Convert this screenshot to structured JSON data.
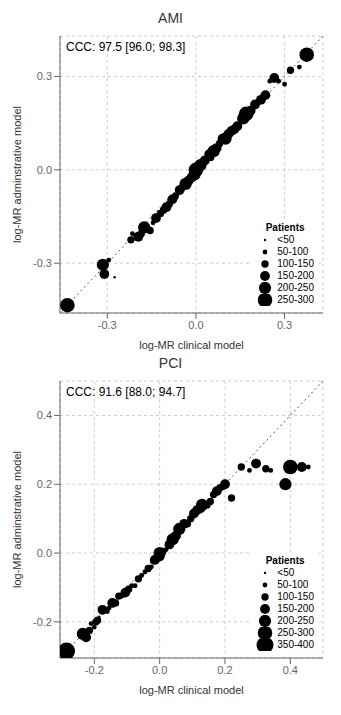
{
  "chart_data": [
    {
      "type": "scatter",
      "title": "AMI",
      "annotation": "CCC: 97.5 [96.0; 98.3]",
      "xlabel": "log-MR clinical model",
      "ylabel": "log-MR adminstrative model",
      "xlim": [
        -0.46,
        0.43
      ],
      "ylim": [
        -0.46,
        0.43
      ],
      "xticks": [
        -0.3,
        {
          "value": 0.0,
          "label": "0.0"
        },
        0.3
      ],
      "yticks": [
        -0.3,
        {
          "value": 0.0,
          "label": "0.0"
        },
        0.3
      ],
      "grid": true,
      "legend": "lower right",
      "legend_title": "Patients",
      "legend_labels": [
        "<50",
        "50-100",
        "100-150",
        "150-200",
        "200-250",
        "250-300"
      ],
      "legend_sizes": [
        3,
        12,
        28,
        50,
        78,
        110
      ],
      "color": "#000000",
      "x": [
        -0.435,
        -0.315,
        -0.31,
        -0.295,
        -0.275,
        -0.22,
        -0.215,
        -0.195,
        -0.185,
        -0.175,
        -0.155,
        -0.145,
        -0.135,
        -0.12,
        -0.11,
        -0.1,
        -0.09,
        -0.08,
        -0.07,
        -0.06,
        -0.055,
        -0.045,
        -0.035,
        -0.025,
        -0.015,
        -0.005,
        0.0,
        0.005,
        0.015,
        0.02,
        0.03,
        0.045,
        0.05,
        0.06,
        0.07,
        0.08,
        0.09,
        0.1,
        0.11,
        0.12,
        0.13,
        0.14,
        0.155,
        0.16,
        0.17,
        0.185,
        0.2,
        0.22,
        0.235,
        0.25,
        0.265,
        0.28,
        0.3,
        0.32,
        0.35,
        0.375
      ],
      "values": [
        -0.435,
        -0.305,
        -0.335,
        -0.29,
        -0.345,
        -0.225,
        -0.205,
        -0.215,
        -0.205,
        -0.185,
        -0.195,
        -0.17,
        -0.155,
        -0.14,
        -0.13,
        -0.12,
        -0.11,
        -0.095,
        -0.085,
        -0.075,
        -0.065,
        -0.055,
        -0.045,
        -0.035,
        -0.025,
        -0.015,
        0.0,
        0.005,
        0.015,
        0.025,
        0.03,
        0.05,
        0.04,
        0.06,
        0.07,
        0.085,
        0.1,
        0.1,
        0.115,
        0.125,
        0.13,
        0.14,
        0.16,
        0.165,
        0.18,
        0.19,
        0.21,
        0.225,
        0.24,
        0.285,
        0.295,
        0.285,
        0.275,
        0.32,
        0.33,
        0.37
      ],
      "sizes": [
        110,
        78,
        50,
        12,
        3,
        28,
        12,
        50,
        28,
        78,
        28,
        12,
        50,
        28,
        28,
        50,
        28,
        50,
        28,
        12,
        50,
        28,
        78,
        50,
        50,
        78,
        110,
        50,
        78,
        28,
        50,
        50,
        28,
        78,
        50,
        28,
        50,
        78,
        50,
        50,
        50,
        50,
        28,
        78,
        110,
        50,
        50,
        50,
        50,
        12,
        50,
        12,
        12,
        28,
        12,
        110
      ]
    },
    {
      "type": "scatter",
      "title": "PCI",
      "annotation": "CCC: 91.6 [88.0; 94.7]",
      "xlabel": "log-MR clinical model",
      "ylabel": "log-MR adminstrative model",
      "xlim": [
        -0.305,
        0.5
      ],
      "ylim": [
        -0.305,
        0.5
      ],
      "xticks": [
        -0.2,
        {
          "value": 0.0,
          "label": "0.0"
        },
        0.2,
        0.4
      ],
      "yticks": [
        -0.2,
        {
          "value": 0.0,
          "label": "0.0"
        },
        0.2,
        0.4
      ],
      "grid": true,
      "legend": "lower right",
      "legend_title": "Patients",
      "legend_labels": [
        "<50",
        "50-100",
        "100-150",
        "150-200",
        "200-250",
        "250-300",
        "350-400"
      ],
      "legend_sizes": [
        3,
        12,
        28,
        50,
        78,
        110,
        150
      ],
      "color": "#000000",
      "x": [
        -0.285,
        -0.235,
        -0.225,
        -0.215,
        -0.21,
        -0.2,
        -0.195,
        -0.19,
        -0.185,
        -0.175,
        -0.16,
        -0.155,
        -0.145,
        -0.135,
        -0.125,
        -0.115,
        -0.105,
        -0.095,
        -0.085,
        -0.075,
        -0.065,
        -0.055,
        -0.045,
        -0.035,
        -0.025,
        -0.015,
        0.0,
        0.0,
        0.01,
        0.02,
        0.03,
        0.04,
        0.05,
        0.06,
        0.075,
        0.085,
        0.095,
        0.105,
        0.115,
        0.125,
        0.13,
        0.145,
        0.155,
        0.165,
        0.175,
        0.185,
        0.195,
        0.2,
        0.22,
        0.25,
        0.275,
        0.295,
        0.325,
        0.34,
        0.385,
        0.4,
        0.435,
        0.455
      ],
      "values": [
        -0.285,
        -0.235,
        -0.245,
        -0.225,
        -0.205,
        -0.215,
        -0.2,
        -0.195,
        -0.185,
        -0.165,
        -0.17,
        -0.16,
        -0.145,
        -0.145,
        -0.125,
        -0.125,
        -0.115,
        -0.105,
        -0.095,
        -0.095,
        -0.075,
        -0.065,
        -0.055,
        -0.045,
        -0.04,
        -0.02,
        0.0,
        -0.01,
        0.005,
        0.01,
        0.025,
        0.04,
        0.05,
        0.07,
        0.085,
        0.085,
        0.1,
        0.115,
        0.125,
        0.13,
        0.14,
        0.14,
        0.15,
        0.17,
        0.18,
        0.19,
        0.19,
        0.2,
        0.16,
        0.25,
        0.24,
        0.26,
        0.245,
        0.24,
        0.2,
        0.25,
        0.25,
        0.25
      ],
      "sizes": [
        150,
        78,
        50,
        28,
        12,
        12,
        28,
        28,
        3,
        50,
        12,
        12,
        50,
        28,
        28,
        12,
        50,
        28,
        12,
        12,
        28,
        12,
        12,
        28,
        12,
        50,
        78,
        50,
        28,
        12,
        50,
        78,
        50,
        78,
        50,
        28,
        28,
        50,
        50,
        50,
        78,
        28,
        28,
        28,
        50,
        28,
        12,
        50,
        28,
        28,
        12,
        50,
        28,
        12,
        78,
        110,
        50,
        12
      ]
    }
  ]
}
